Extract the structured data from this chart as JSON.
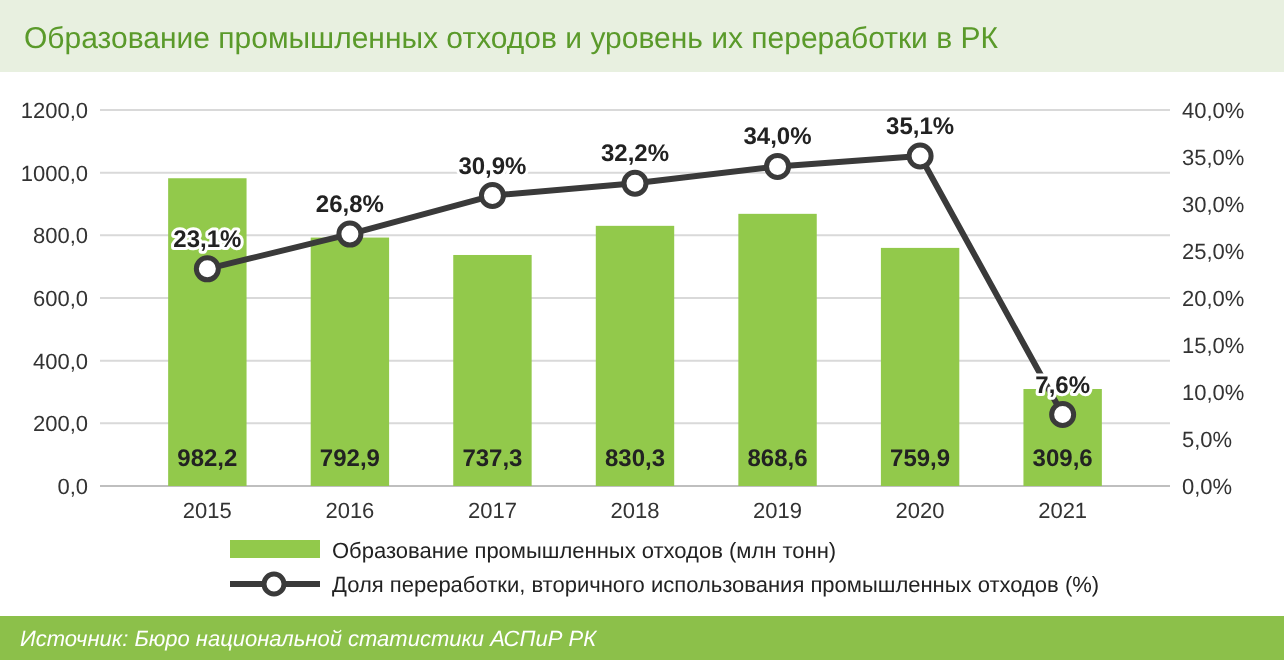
{
  "chart_data": {
    "type": "bar",
    "title": "Образование промышленных отходов и уровень их переработки в РК",
    "categories": [
      "2015",
      "2016",
      "2017",
      "2018",
      "2019",
      "2020",
      "2021"
    ],
    "series": [
      {
        "name": "Образование промышленных отходов (млн тонн)",
        "color": "#92c94b",
        "values": [
          982.2,
          792.9,
          737.3,
          830.3,
          868.6,
          759.9,
          309.6
        ],
        "value_labels": [
          "982,2",
          "792,9",
          "737,3",
          "830,3",
          "868,6",
          "759,9",
          "309,6"
        ]
      },
      {
        "name": "Доля переработки, вторичного использования промышленных отходов (%)",
        "type": "line",
        "axis": "y2",
        "color": "#3a3a3a",
        "marker": "circle",
        "values": [
          23.1,
          26.8,
          30.9,
          32.2,
          34.0,
          35.1,
          7.6
        ],
        "value_labels": [
          "23,1%",
          "26,8%",
          "30,9%",
          "32,2%",
          "34,0%",
          "35,1%",
          "7,6%"
        ]
      }
    ],
    "ylim": [
      0,
      1200
    ],
    "yticks": [
      {
        "value": 0,
        "label": "0,0"
      },
      {
        "value": 200,
        "label": "200,0"
      },
      {
        "value": 400,
        "label": "400,0"
      },
      {
        "value": 600,
        "label": "600,0"
      },
      {
        "value": 800,
        "label": "800,0"
      },
      {
        "value": 1000,
        "label": "1000,0"
      },
      {
        "value": 1200,
        "label": "1200,0"
      }
    ],
    "y2lim": [
      0,
      40
    ],
    "y2ticks": [
      {
        "value": 0,
        "label": "0,0%"
      },
      {
        "value": 5,
        "label": "5,0%"
      },
      {
        "value": 10,
        "label": "10,0%"
      },
      {
        "value": 15,
        "label": "15,0%"
      },
      {
        "value": 20,
        "label": "20,0%"
      },
      {
        "value": 25,
        "label": "25,0%"
      },
      {
        "value": 30,
        "label": "30,0%"
      },
      {
        "value": 35,
        "label": "35,0%"
      },
      {
        "value": 40,
        "label": "40,0%"
      }
    ],
    "grid": "y",
    "legend": "bottom",
    "annotations": [
      "Источник: Бюро национальной статистики АСПиР РК"
    ]
  }
}
